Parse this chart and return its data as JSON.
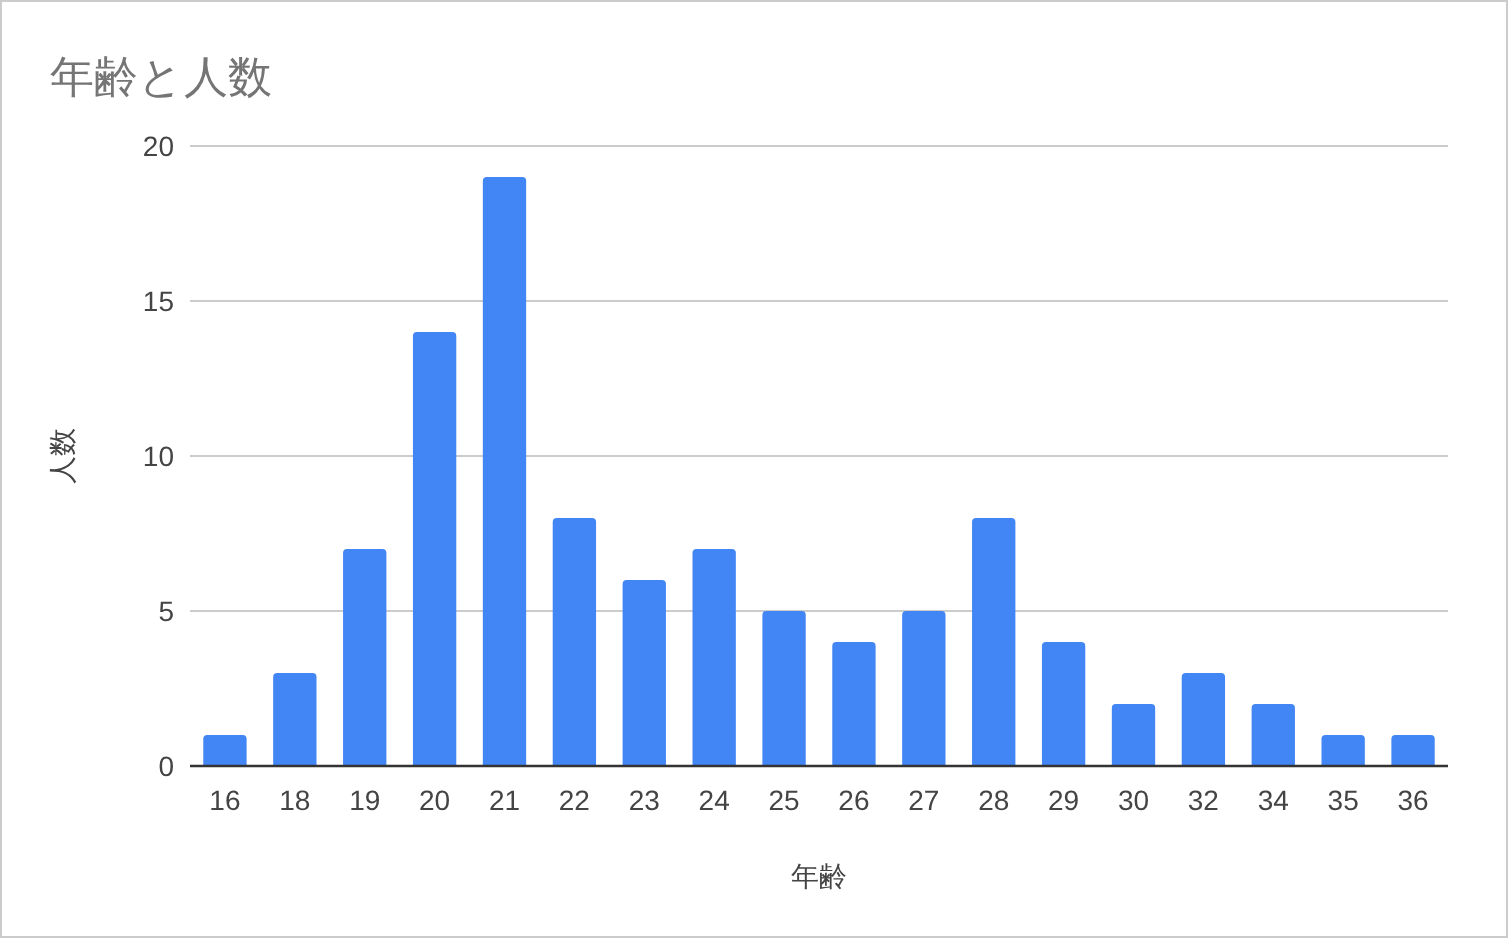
{
  "chart_data": {
    "type": "bar",
    "title": "年齢と人数",
    "xlabel": "年齢",
    "ylabel": "人数",
    "categories": [
      "16",
      "18",
      "19",
      "20",
      "21",
      "22",
      "23",
      "24",
      "25",
      "26",
      "27",
      "28",
      "29",
      "30",
      "32",
      "34",
      "35",
      "36"
    ],
    "values": [
      1,
      3,
      7,
      14,
      19,
      8,
      6,
      7,
      5,
      4,
      5,
      8,
      4,
      2,
      3,
      2,
      1,
      1
    ],
    "color": "#4285f4",
    "ylim": [
      0,
      20
    ],
    "yticks": [
      0,
      5,
      10,
      15,
      20
    ],
    "grid": "y"
  }
}
